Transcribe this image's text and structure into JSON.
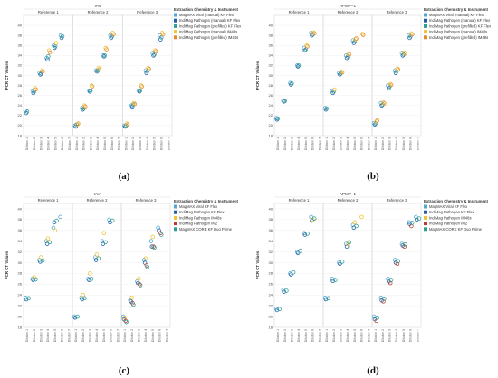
{
  "chart_data": [
    {
      "type": "scatter",
      "panel_label": "(a)",
      "title": "IAV",
      "ylabel": "PCR CT Values",
      "ylim": [
        18,
        42
      ],
      "yticks": [
        18,
        20,
        22,
        24,
        26,
        28,
        30,
        32,
        34,
        36,
        38,
        40
      ],
      "facets": [
        "Reference 1",
        "Reference 2",
        "Reference 3"
      ],
      "categories": [
        "Dilution 1",
        "Dilution 2",
        "Dilution 3",
        "Dilution 4",
        "Dilution 5",
        "Dilution 6",
        "Dilution 7"
      ],
      "legend_title": "Extraction Chemistry & Instrument",
      "series": [
        {
          "name": "MagMAX Viral (manual) KF Flex",
          "color": "#4fa8d8",
          "facet_values": [
            [
              23,
              27,
              30.5,
              33.5,
              36,
              38,
              null
            ],
            [
              20,
              23.5,
              27,
              31,
              34,
              38,
              null
            ],
            [
              20,
              24,
              27,
              31,
              34.5,
              38,
              null
            ]
          ]
        },
        {
          "name": "IndiMag Pathogen (manual) KF Flex",
          "color": "#1f5fa8",
          "facet_values": [
            [
              22.5,
              26.5,
              30.2,
              33.2,
              35.5,
              37.5,
              null
            ],
            [
              19.8,
              23.2,
              26.8,
              30.8,
              33.8,
              37.5,
              null
            ],
            [
              19.8,
              23.8,
              26.8,
              30.5,
              34,
              37.2,
              null
            ]
          ]
        },
        {
          "name": "IndiMag Pathogen (prefilled) KF Flex",
          "color": "#2e9e8f",
          "facet_values": [
            [
              22.8,
              26.8,
              30.4,
              33.8,
              35.8,
              37.8,
              null
            ],
            [
              20.2,
              23.4,
              27,
              31,
              34,
              37.8,
              null
            ],
            [
              20,
              24.2,
              27,
              30.8,
              34.2,
              37.6,
              null
            ]
          ]
        },
        {
          "name": "IndiMag Pathogen (manual) IM48s",
          "color": "#f1c232",
          "facet_values": [
            [
              null,
              27.5,
              31,
              35,
              36.5,
              null,
              null
            ],
            [
              20.2,
              24,
              28,
              31.5,
              35.5,
              38.5,
              null
            ],
            [
              20.4,
              24.5,
              28,
              31.5,
              35,
              38.5,
              null
            ]
          ]
        },
        {
          "name": "IndiMag Pathogen (prefilled) IM48s",
          "color": "#e6892c",
          "facet_values": [
            [
              null,
              27.2,
              30.8,
              34.6,
              null,
              null,
              null
            ],
            [
              20.4,
              23.8,
              27.8,
              31.2,
              35.2,
              38.2,
              null
            ],
            [
              20.2,
              24.3,
              27.8,
              31.3,
              34.8,
              38.2,
              null
            ]
          ]
        }
      ]
    },
    {
      "type": "scatter",
      "panel_label": "(b)",
      "title": "APMV−1",
      "ylabel": "PCR CT Values",
      "ylim": [
        18,
        42
      ],
      "yticks": [
        18,
        20,
        22,
        24,
        26,
        28,
        30,
        32,
        34,
        36,
        38,
        40
      ],
      "facets": [
        "Reference 1",
        "Reference 2",
        "Reference 3"
      ],
      "categories": [
        "Dilution 1",
        "Dilution 2",
        "Dilution 3",
        "Dilution 4",
        "Dilution 5",
        "Dilution 6",
        "Dilution 7"
      ],
      "legend_title": "Extraction Chemistry & Instrument",
      "series": [
        {
          "name": "MagMAX Viral (manual) KF Flex",
          "color": "#4fa8d8",
          "facet_values": [
            [
              21.5,
              25,
              28.5,
              32,
              35.5,
              38.5,
              null
            ],
            [
              23.5,
              27,
              30.5,
              34,
              37,
              null,
              null
            ],
            [
              20.5,
              24.5,
              28,
              31,
              34.5,
              38,
              null
            ]
          ]
        },
        {
          "name": "IndiMag Pathogen (manual) KF Flex",
          "color": "#1f5fa8",
          "facet_values": [
            [
              21.2,
              24.8,
              28.2,
              31.8,
              35,
              38,
              null
            ],
            [
              23.2,
              26.5,
              30.2,
              33.5,
              36.5,
              null,
              null
            ],
            [
              20.2,
              24,
              27.5,
              30.5,
              34,
              37.5,
              null
            ]
          ]
        },
        {
          "name": "IndiMag Pathogen (prefilled) KF Flex",
          "color": "#2e9e8f",
          "facet_values": [
            [
              21.4,
              24.9,
              28.4,
              32,
              35.2,
              38.2,
              null
            ],
            [
              23.4,
              26.8,
              30.4,
              33.8,
              36.8,
              null,
              null
            ],
            [
              20.4,
              24.2,
              27.8,
              30.8,
              34.2,
              37.8,
              null
            ]
          ]
        },
        {
          "name": "IndiMag Pathogen (manual) IM48s",
          "color": "#f1c232",
          "facet_values": [
            [
              null,
              null,
              null,
              null,
              36,
              38.6,
              null
            ],
            [
              null,
              27.2,
              30.8,
              34.4,
              37.2,
              38.3,
              null
            ],
            [
              20.8,
              24.6,
              28.3,
              31.4,
              34.6,
              38.4,
              null
            ]
          ]
        },
        {
          "name": "IndiMag Pathogen (prefilled) IM48s",
          "color": "#e6892c",
          "facet_values": [
            [
              null,
              null,
              null,
              null,
              35.8,
              38.4,
              null
            ],
            [
              null,
              null,
              30.6,
              34.2,
              37.4,
              38.1,
              null
            ],
            [
              21,
              24.4,
              28.1,
              31.2,
              34.4,
              38.2,
              null
            ]
          ]
        }
      ]
    },
    {
      "type": "scatter",
      "panel_label": "(c)",
      "title": "IAV",
      "ylabel": "PCR CT Values",
      "ylim": [
        18,
        41
      ],
      "yticks": [
        18,
        20,
        22,
        24,
        26,
        28,
        30,
        32,
        34,
        36,
        38,
        40
      ],
      "facets": [
        "Reference 1",
        "Reference 2",
        "Reference 3"
      ],
      "categories": [
        "Dilution 1",
        "Dilution 2",
        "Dilution 3",
        "Dilution 4",
        "Dilution 5",
        "Dilution 6",
        "Dilution 7"
      ],
      "legend_title": "Extraction Chemistry & Instrument",
      "series": [
        {
          "name": "MagMAX Viral KF Flex",
          "color": "#4fa8d8",
          "facet_values": [
            [
              23.5,
              27,
              30.5,
              34,
              36.5,
              38.5,
              null
            ],
            [
              20,
              23.5,
              27,
              31,
              34,
              38,
              null
            ],
            [
              20,
              23,
              26.5,
              30.5,
              34,
              36.5,
              null
            ]
          ]
        },
        {
          "name": "IndiMag Pathogen KF Flex",
          "color": "#1f5fa8",
          "facet_values": [
            [
              23.2,
              26.8,
              30.2,
              33.5,
              37.5,
              null,
              null
            ],
            [
              19.8,
              23.2,
              26.8,
              30.5,
              33.5,
              37.5,
              null
            ],
            [
              19.5,
              22.8,
              26.2,
              30,
              33,
              36,
              null
            ]
          ]
        },
        {
          "name": "IndiMag Pathogen IM48s",
          "color": "#f1c232",
          "facet_values": [
            [
              null,
              27.3,
              31,
              34.5,
              36,
              null,
              null
            ],
            [
              null,
              24,
              28,
              31.5,
              35.5,
              null,
              null
            ],
            [
              19.8,
              23.5,
              27,
              30.8,
              34.8,
              null,
              null
            ]
          ]
        },
        {
          "name": "IndiMag Pathogen IM2",
          "color": "#c0392b",
          "facet_values": [
            [
              null,
              null,
              null,
              null,
              null,
              null,
              null
            ],
            [
              null,
              null,
              null,
              null,
              null,
              null,
              null
            ],
            [
              19.2,
              22.5,
              26,
              29.5,
              33,
              35.5,
              null
            ]
          ]
        },
        {
          "name": "MagMAX CORE KF Duo Prime",
          "color": "#2e9e8f",
          "facet_values": [
            [
              23.4,
              26.9,
              30.4,
              33.8,
              37.8,
              null,
              null
            ],
            [
              20,
              23.4,
              27,
              30.8,
              33.8,
              37.8,
              null
            ],
            [
              19,
              22.2,
              25.8,
              29.2,
              32.8,
              35.2,
              null
            ]
          ]
        }
      ]
    },
    {
      "type": "scatter",
      "panel_label": "(d)",
      "title": "APMV−1",
      "ylabel": "PCR CT Values",
      "ylim": [
        18,
        41
      ],
      "yticks": [
        18,
        20,
        22,
        24,
        26,
        28,
        30,
        32,
        34,
        36,
        38,
        40
      ],
      "facets": [
        "Reference 1",
        "Reference 2",
        "Reference 3"
      ],
      "categories": [
        "Dilution 1",
        "Dilution 2",
        "Dilution 3",
        "Dilution 4",
        "Dilution 5",
        "Dilution 6",
        "Dilution 7"
      ],
      "legend_title": "Extraction Chemistry & Instrument",
      "series": [
        {
          "name": "MagMAX Viral KF Flex",
          "color": "#4fa8d8",
          "facet_values": [
            [
              21.5,
              25,
              28,
              32,
              35.5,
              38.5,
              null
            ],
            [
              23.5,
              27,
              30,
              33.5,
              37,
              null,
              null
            ],
            [
              20,
              23.5,
              27,
              30.5,
              33.5,
              37.5,
              38.5
            ]
          ]
        },
        {
          "name": "IndiMag Pathogen KF Flex",
          "color": "#1f5fa8",
          "facet_values": [
            [
              21.2,
              24.6,
              27.8,
              31.8,
              35.2,
              37.8,
              null
            ],
            [
              23.2,
              26.6,
              29.8,
              33,
              36.5,
              null,
              null
            ],
            [
              19.5,
              23,
              26.5,
              30,
              33.2,
              37.2,
              38
            ]
          ]
        },
        {
          "name": "IndiMag Pathogen IM48s",
          "color": "#f1c232",
          "facet_values": [
            [
              null,
              null,
              null,
              null,
              null,
              38,
              null
            ],
            [
              null,
              null,
              null,
              33.5,
              37.5,
              38.5,
              null
            ],
            [
              null,
              null,
              null,
              null,
              null,
              null,
              null
            ]
          ]
        },
        {
          "name": "IndiMag Pathogen IM2",
          "color": "#c0392b",
          "facet_values": [
            [
              null,
              null,
              null,
              null,
              null,
              null,
              null
            ],
            [
              null,
              null,
              null,
              null,
              null,
              null,
              null
            ],
            [
              19.2,
              22.8,
              26.2,
              29.8,
              33,
              36.8,
              null
            ]
          ]
        },
        {
          "name": "MagMAX CORE KF Duo Prime",
          "color": "#2e9e8f",
          "facet_values": [
            [
              21.4,
              24.8,
              28.2,
              32.2,
              35.4,
              38.2,
              null
            ],
            [
              23.4,
              26.8,
              30.2,
              33.8,
              36.8,
              null,
              null
            ],
            [
              19.8,
              23.3,
              26.8,
              30.3,
              33.4,
              37.4,
              38.2
            ]
          ]
        }
      ]
    }
  ]
}
